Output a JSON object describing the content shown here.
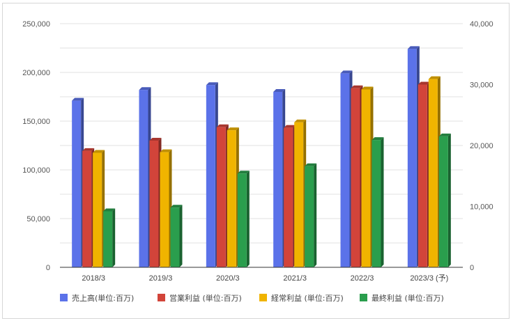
{
  "chart_data": {
    "type": "bar",
    "categories": [
      "2018/3",
      "2019/3",
      "2020/3",
      "2021/3",
      "2022/3",
      "2023/3 (予)"
    ],
    "series": [
      {
        "name": "売上高(単位:百万)",
        "axis": "left",
        "color": "#5b72e9",
        "values": [
          171000,
          182000,
          187000,
          180000,
          199000,
          224000
        ]
      },
      {
        "name": "営業利益 (単位:百万)",
        "axis": "right",
        "color": "#d2443a",
        "values": [
          19100,
          20800,
          23000,
          22900,
          29400,
          30000
        ]
      },
      {
        "name": "経常利益 (単位:百万)",
        "axis": "right",
        "color": "#f0b400",
        "values": [
          18800,
          18900,
          22500,
          23800,
          29200,
          30900
        ]
      },
      {
        "name": "最終利益 (単位:百万)",
        "axis": "right",
        "color": "#2a9e4d",
        "values": [
          9200,
          9800,
          15400,
          16600,
          20900,
          21500
        ]
      }
    ],
    "y_left": {
      "min": 0,
      "max": 250000,
      "ticks": [
        "0",
        "50,000",
        "100,000",
        "150,000",
        "200,000",
        "250,000"
      ]
    },
    "y_right": {
      "min": 0,
      "max": 40000,
      "ticks": [
        "0",
        "10,000",
        "20,000",
        "30,000",
        "40,000"
      ]
    },
    "grid": true,
    "legend_position": "bottom"
  }
}
